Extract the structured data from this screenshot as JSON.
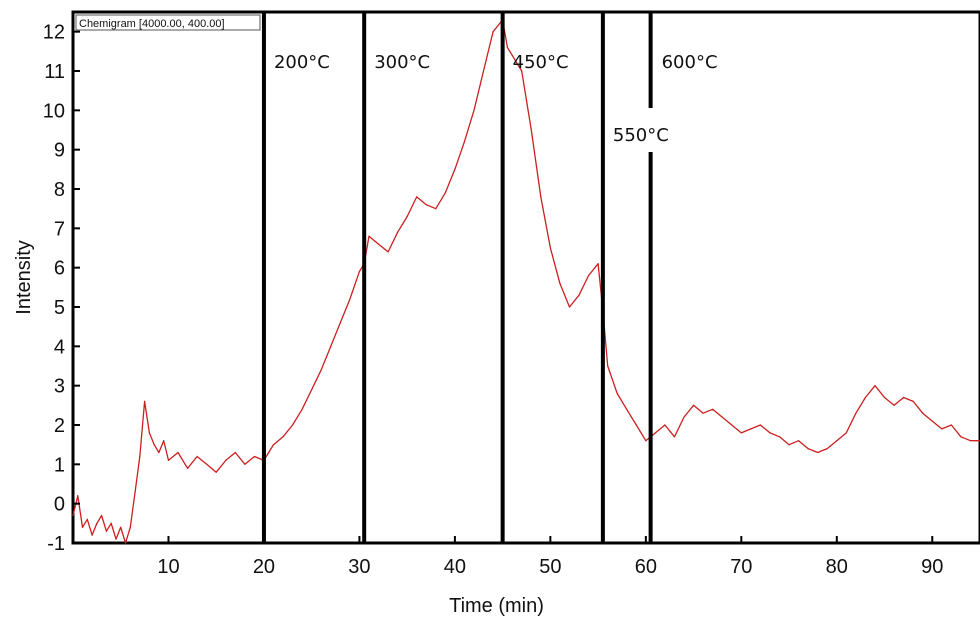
{
  "chart_data": {
    "type": "line",
    "title": "",
    "legend_label": "Chemigram [4000.00, 400.00]",
    "legend_placement": "top-left",
    "xlabel": "Time (min)",
    "ylabel": "Intensity",
    "xlim": [
      0,
      95
    ],
    "ylim": [
      -1,
      12.5
    ],
    "x_ticks": [
      10,
      20,
      30,
      40,
      50,
      60,
      70,
      80,
      90
    ],
    "y_ticks": [
      -1,
      0,
      1,
      2,
      3,
      4,
      5,
      6,
      7,
      8,
      9,
      10,
      11,
      12
    ],
    "grid": false,
    "line_color": "#cc1f1f",
    "series": [
      {
        "x": [
          0.0,
          0.5,
          1.0,
          1.5,
          2.0,
          2.5,
          3.0,
          3.5,
          4.0,
          4.5,
          5.0,
          5.5,
          6.0,
          6.5,
          7.0,
          7.5,
          8.0,
          8.5,
          9.0,
          9.5,
          10.0,
          11.0,
          12.0,
          13.0,
          14.0,
          15.0,
          16.0,
          17.0,
          18.0,
          19.0,
          20.0,
          20.5,
          21.0,
          22.0,
          23.0,
          24.0,
          25.0,
          26.0,
          27.0,
          28.0,
          29.0,
          30.0,
          30.5,
          31.0,
          32.0,
          33.0,
          34.0,
          35.0,
          36.0,
          37.0,
          38.0,
          39.0,
          40.0,
          41.0,
          42.0,
          43.0,
          44.0,
          45.0,
          45.5,
          46.0,
          47.0,
          48.0,
          49.0,
          50.0,
          51.0,
          52.0,
          53.0,
          54.0,
          55.0,
          55.5,
          56.0,
          57.0,
          58.0,
          59.0,
          60.0,
          61.0,
          62.0,
          63.0,
          64.0,
          65.0,
          66.0,
          67.0,
          68.0,
          69.0,
          70.0,
          71.0,
          72.0,
          73.0,
          74.0,
          75.0,
          76.0,
          77.0,
          78.0,
          79.0,
          80.0,
          81.0,
          82.0,
          83.0,
          84.0,
          85.0,
          86.0,
          87.0,
          88.0,
          89.0,
          90.0,
          91.0,
          92.0,
          93.0,
          94.0,
          95.0
        ],
        "values": [
          -0.3,
          0.2,
          -0.6,
          -0.4,
          -0.8,
          -0.5,
          -0.3,
          -0.7,
          -0.5,
          -0.9,
          -0.6,
          -1.0,
          -0.6,
          0.3,
          1.2,
          2.6,
          1.8,
          1.5,
          1.3,
          1.6,
          1.1,
          1.3,
          0.9,
          1.2,
          1.0,
          0.8,
          1.1,
          1.3,
          1.0,
          1.2,
          1.1,
          1.3,
          1.5,
          1.7,
          2.0,
          2.4,
          2.9,
          3.4,
          4.0,
          4.6,
          5.2,
          5.9,
          6.1,
          6.8,
          6.6,
          6.4,
          6.9,
          7.3,
          7.8,
          7.6,
          7.5,
          7.9,
          8.5,
          9.2,
          10.0,
          11.0,
          12.0,
          12.3,
          11.6,
          11.4,
          11.0,
          9.5,
          7.8,
          6.5,
          5.6,
          5.0,
          5.3,
          5.8,
          6.1,
          4.9,
          3.5,
          2.8,
          2.4,
          2.0,
          1.6,
          1.8,
          2.0,
          1.7,
          2.2,
          2.5,
          2.3,
          2.4,
          2.2,
          2.0,
          1.8,
          1.9,
          2.0,
          1.8,
          1.7,
          1.5,
          1.6,
          1.4,
          1.3,
          1.4,
          1.6,
          1.8,
          2.3,
          2.7,
          3.0,
          2.7,
          2.5,
          2.7,
          2.6,
          2.3,
          2.1,
          1.9,
          2.0,
          1.7,
          1.6,
          1.6
        ]
      }
    ],
    "temperature_markers": [
      {
        "x": 20,
        "label": "200°C"
      },
      {
        "x": 30.5,
        "label": "300°C"
      },
      {
        "x": 45,
        "label": "450°C"
      },
      {
        "x": 55.5,
        "label": "550°C"
      },
      {
        "x": 60.5,
        "label": "600°C"
      }
    ]
  }
}
